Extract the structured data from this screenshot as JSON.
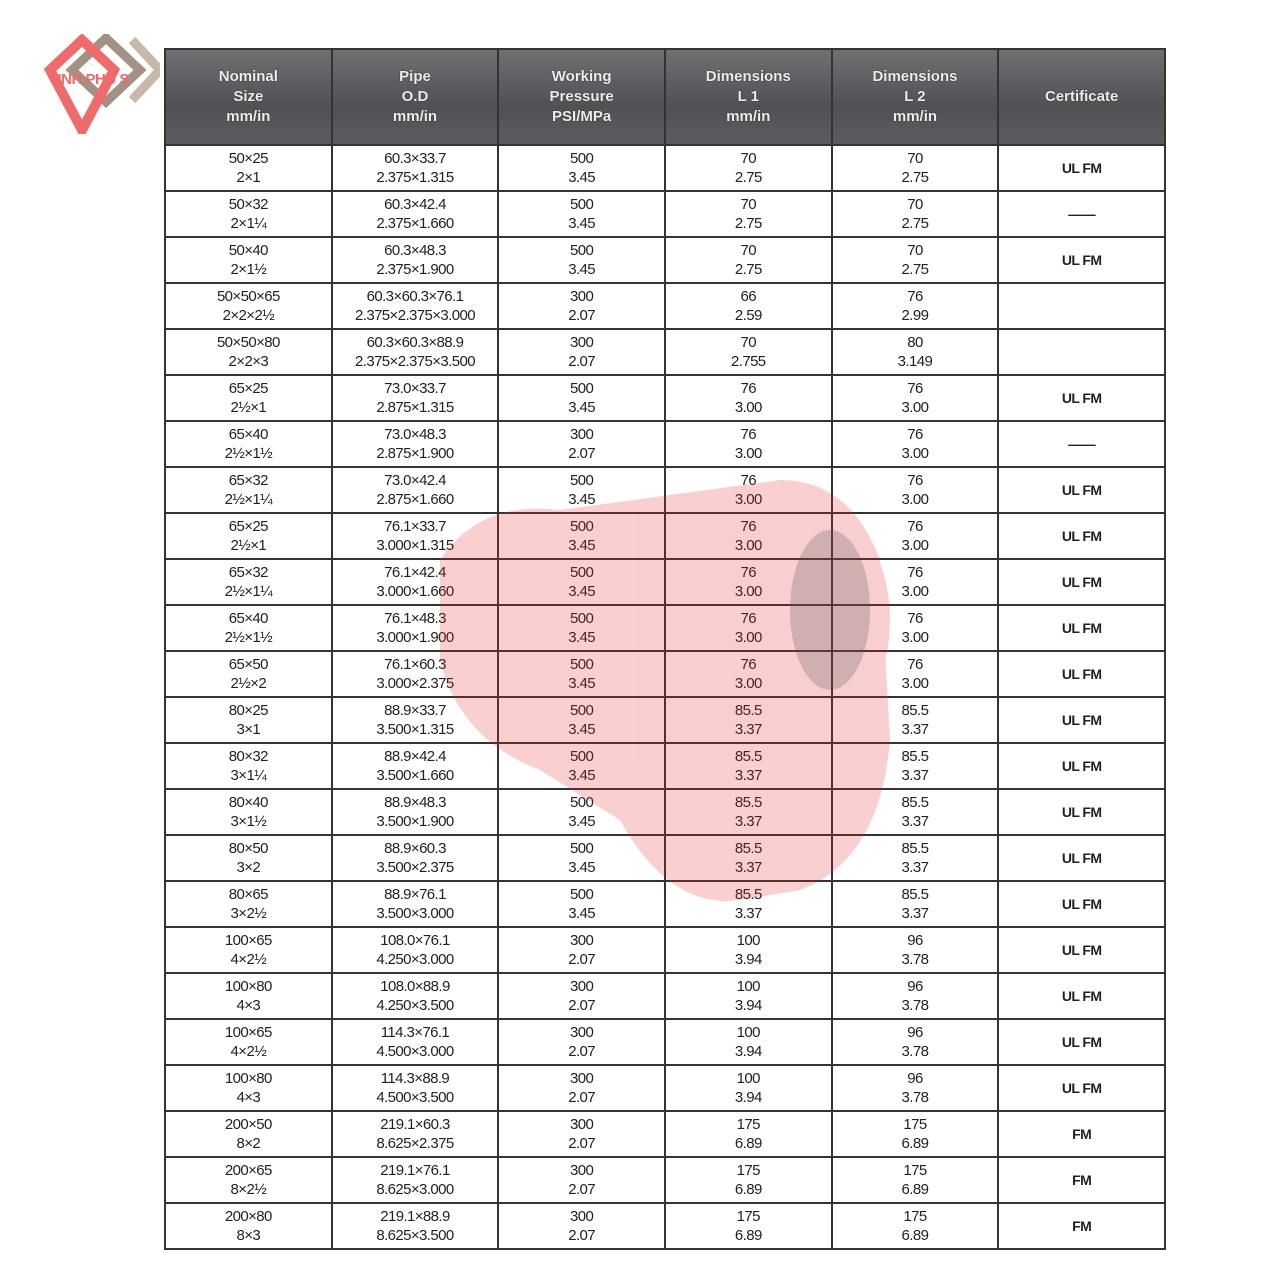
{
  "logo": {
    "text": "VINH PHU S",
    "colors": [
      "#ef6b6b",
      "#8c7565"
    ]
  },
  "columns": [
    "Nominal\nSize\nmm/in",
    "Pipe\nO.D\nmm/in",
    "Working\nPressure\nPSI/MPa",
    "Dimensions\nL 1\nmm/in",
    "Dimensions\nL 2\nmm/in",
    "Certificate"
  ],
  "rows": [
    [
      "50×25\n2×1",
      "60.3×33.7\n2.375×1.315",
      "500\n3.45",
      "70\n2.75",
      "70\n2.75",
      "UL FM"
    ],
    [
      "50×32\n2×1¼",
      "60.3×42.4\n2.375×1.660",
      "500\n3.45",
      "70\n2.75",
      "70\n2.75",
      "——"
    ],
    [
      "50×40\n2×1½",
      "60.3×48.3\n2.375×1.900",
      "500\n3.45",
      "70\n2.75",
      "70\n2.75",
      "UL FM"
    ],
    [
      "50×50×65\n2×2×2½",
      "60.3×60.3×76.1\n2.375×2.375×3.000",
      "300\n2.07",
      "66\n2.59",
      "76\n2.99",
      ""
    ],
    [
      "50×50×80\n2×2×3",
      "60.3×60.3×88.9\n2.375×2.375×3.500",
      "300\n2.07",
      "70\n2.755",
      "80\n3.149",
      ""
    ],
    [
      "65×25\n2½×1",
      "73.0×33.7\n2.875×1.315",
      "500\n3.45",
      "76\n3.00",
      "76\n3.00",
      "UL FM"
    ],
    [
      "65×40\n2½×1½",
      "73.0×48.3\n2.875×1.900",
      "300\n2.07",
      "76\n3.00",
      "76\n3.00",
      "——"
    ],
    [
      "65×32\n2½×1¼",
      "73.0×42.4\n2.875×1.660",
      "500\n3.45",
      "76\n3.00",
      "76\n3.00",
      "UL FM"
    ],
    [
      "65×25\n2½×1",
      "76.1×33.7\n3.000×1.315",
      "500\n3.45",
      "76\n3.00",
      "76\n3.00",
      "UL FM"
    ],
    [
      "65×32\n2½×1¼",
      "76.1×42.4\n3.000×1.660",
      "500\n3.45",
      "76\n3.00",
      "76\n3.00",
      "UL FM"
    ],
    [
      "65×40\n2½×1½",
      "76.1×48.3\n3.000×1.900",
      "500\n3.45",
      "76\n3.00",
      "76\n3.00",
      "UL FM"
    ],
    [
      "65×50\n2½×2",
      "76.1×60.3\n3.000×2.375",
      "500\n3.45",
      "76\n3.00",
      "76\n3.00",
      "UL FM"
    ],
    [
      "80×25\n3×1",
      "88.9×33.7\n3.500×1.315",
      "500\n3.45",
      "85.5\n3.37",
      "85.5\n3.37",
      "UL FM"
    ],
    [
      "80×32\n3×1¼",
      "88.9×42.4\n3.500×1.660",
      "500\n3.45",
      "85.5\n3.37",
      "85.5\n3.37",
      "UL FM"
    ],
    [
      "80×40\n3×1½",
      "88.9×48.3\n3.500×1.900",
      "500\n3.45",
      "85.5\n3.37",
      "85.5\n3.37",
      "UL FM"
    ],
    [
      "80×50\n3×2",
      "88.9×60.3\n3.500×2.375",
      "500\n3.45",
      "85.5\n3.37",
      "85.5\n3.37",
      "UL FM"
    ],
    [
      "80×65\n3×2½",
      "88.9×76.1\n3.500×3.000",
      "500\n3.45",
      "85.5\n3.37",
      "85.5\n3.37",
      "UL FM"
    ],
    [
      "100×65\n4×2½",
      "108.0×76.1\n4.250×3.000",
      "300\n2.07",
      "100\n3.94",
      "96\n3.78",
      "UL FM"
    ],
    [
      "100×80\n4×3",
      "108.0×88.9\n4.250×3.500",
      "300\n2.07",
      "100\n3.94",
      "96\n3.78",
      "UL FM"
    ],
    [
      "100×65\n4×2½",
      "114.3×76.1\n4.500×3.000",
      "300\n2.07",
      "100\n3.94",
      "96\n3.78",
      "UL FM"
    ],
    [
      "100×80\n4×3",
      "114.3×88.9\n4.500×3.500",
      "300\n2.07",
      "100\n3.94",
      "96\n3.78",
      "UL FM"
    ],
    [
      "200×50\n8×2",
      "219.1×60.3\n8.625×2.375",
      "300\n2.07",
      "175\n6.89",
      "175\n6.89",
      "FM"
    ],
    [
      "200×65\n8×2½",
      "219.1×76.1\n8.625×3.000",
      "300\n2.07",
      "175\n6.89",
      "175\n6.89",
      "FM"
    ],
    [
      "200×80\n8×3",
      "219.1×88.9\n8.625×3.500",
      "300\n2.07",
      "175\n6.89",
      "175\n6.89",
      "FM"
    ]
  ],
  "watermark": {
    "color": "#e8232a",
    "opacity": 0.22
  }
}
